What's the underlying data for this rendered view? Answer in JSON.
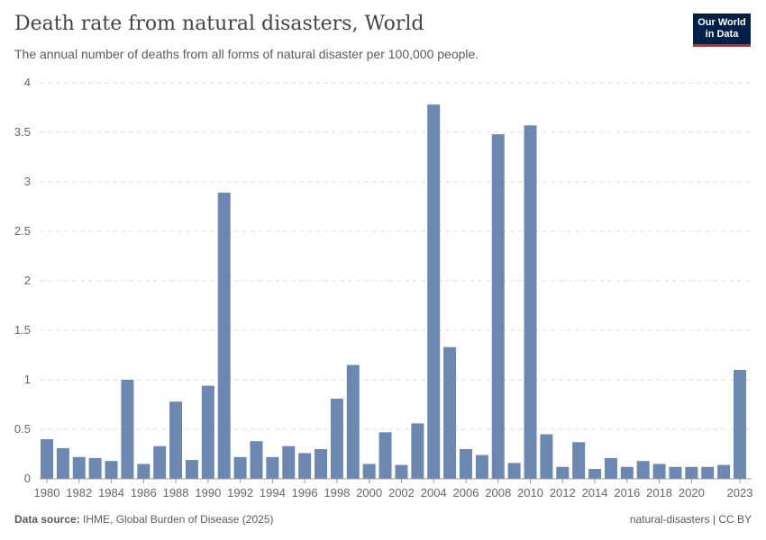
{
  "header": {
    "title": "Death rate from natural disasters, World",
    "subtitle": "The annual number of deaths from all forms of natural disaster per 100,000 people.",
    "logo_line1": "Our World",
    "logo_line2": "in Data"
  },
  "footer": {
    "source_label": "Data source:",
    "source": "IHME, Global Burden of Disease (2025)",
    "slug": "natural-disasters | CC BY"
  },
  "chart_data": {
    "type": "bar",
    "title": "Death rate from natural disasters, World",
    "xlabel": "",
    "ylabel": "",
    "ylim": [
      0,
      4
    ],
    "yticks": [
      0,
      0.5,
      1,
      1.5,
      2,
      2.5,
      3,
      3.5,
      4
    ],
    "xtick_labels": [
      "1980",
      "1982",
      "1984",
      "1986",
      "1988",
      "1990",
      "1992",
      "1994",
      "1996",
      "1998",
      "2000",
      "2002",
      "2004",
      "2006",
      "2008",
      "2010",
      "2012",
      "2014",
      "2016",
      "2018",
      "2020",
      "2023"
    ],
    "grid": "horizontal dashed",
    "bar_color": "#6d88b0",
    "categories": [
      1980,
      1981,
      1982,
      1983,
      1984,
      1985,
      1986,
      1987,
      1988,
      1989,
      1990,
      1991,
      1992,
      1993,
      1994,
      1995,
      1996,
      1997,
      1998,
      1999,
      2000,
      2001,
      2002,
      2003,
      2004,
      2005,
      2006,
      2007,
      2008,
      2009,
      2010,
      2011,
      2012,
      2013,
      2014,
      2015,
      2016,
      2017,
      2018,
      2019,
      2020,
      2021,
      2022,
      2023
    ],
    "values": [
      0.4,
      0.31,
      0.22,
      0.21,
      0.18,
      1.0,
      0.15,
      0.33,
      0.78,
      0.19,
      0.94,
      2.89,
      0.22,
      0.38,
      0.22,
      0.33,
      0.26,
      0.3,
      0.81,
      1.15,
      0.15,
      0.47,
      0.14,
      0.56,
      3.78,
      1.33,
      0.3,
      0.24,
      3.48,
      0.16,
      3.57,
      0.45,
      0.12,
      0.37,
      0.1,
      0.21,
      0.12,
      0.18,
      0.15,
      0.12,
      0.12,
      0.12,
      0.14,
      1.1
    ]
  }
}
